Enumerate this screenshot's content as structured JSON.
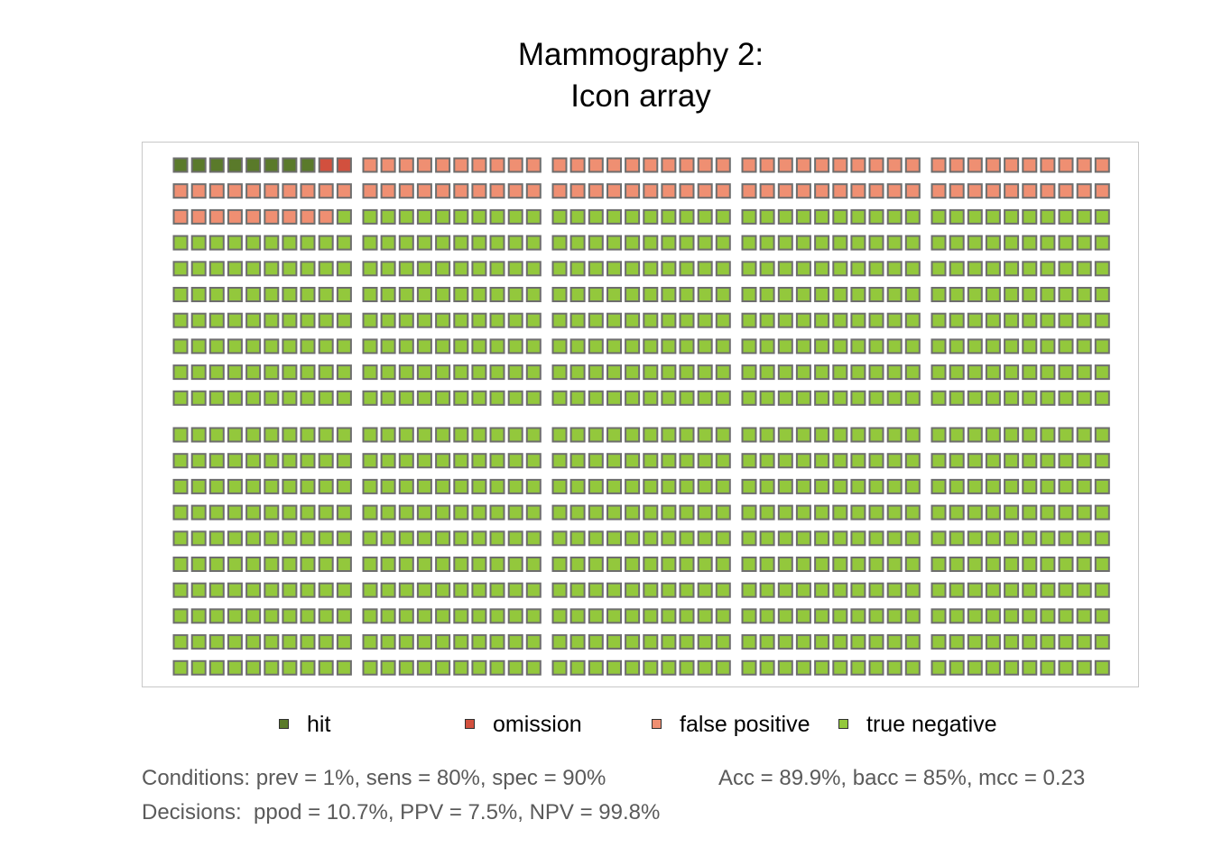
{
  "chart_data": {
    "type": "icon_array",
    "title": [
      "Mammography 2:",
      "Icon array"
    ],
    "population": 1000,
    "layout": {
      "blocks_per_row": 5,
      "block_rows": 2,
      "icons_per_block_side": 10
    },
    "categories": [
      {
        "key": "hit",
        "label": "hit",
        "count": 8,
        "color": "#5a7a2a"
      },
      {
        "key": "omission",
        "label": "omission",
        "count": 2,
        "color": "#d2503e"
      },
      {
        "key": "false_positive",
        "label": "false positive",
        "count": 99,
        "color": "#ef8f72"
      },
      {
        "key": "true_negative",
        "label": "true negative",
        "count": 891,
        "color": "#93c83c"
      }
    ],
    "icon_border_color": "#6e6e6e",
    "legend_position": "bottom"
  },
  "notes": {
    "conditions": "Conditions: prev = 1%, sens = 80%, spec = 90%",
    "accuracy": "Acc = 89.9%, bacc = 85%, mcc = 0.23",
    "decisions": "Decisions:  ppod = 10.7%, PPV = 7.5%, NPV = 99.8%"
  }
}
